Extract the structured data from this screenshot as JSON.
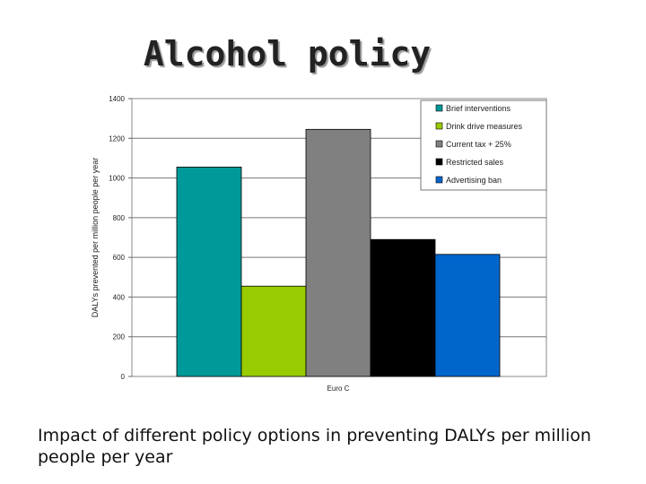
{
  "slide": {
    "title": "Alcohol policy",
    "caption": "Impact of different policy options in preventing DALYs per million people per year"
  },
  "chart_data": {
    "type": "bar",
    "title": "",
    "xlabel": "Euro C",
    "ylabel": "DALYs prevented per million people per year",
    "categories": [
      "Euro C"
    ],
    "ylim": [
      0,
      1400
    ],
    "yticks": [
      "0",
      "200",
      "400",
      "600",
      "800",
      "1000",
      "1200",
      "1400"
    ],
    "grid": true,
    "legend_position": "top-right",
    "series": [
      {
        "name": "Brief interventions",
        "color": "#009999",
        "values": [
          1055
        ]
      },
      {
        "name": "Drink drive measures",
        "color": "#99cc00",
        "values": [
          455
        ]
      },
      {
        "name": "Current tax + 25%",
        "color": "#808080",
        "values": [
          1245
        ]
      },
      {
        "name": "Restricted sales",
        "color": "#000000",
        "values": [
          690
        ]
      },
      {
        "name": "Advertising ban",
        "color": "#0066cc",
        "values": [
          615
        ]
      }
    ]
  }
}
